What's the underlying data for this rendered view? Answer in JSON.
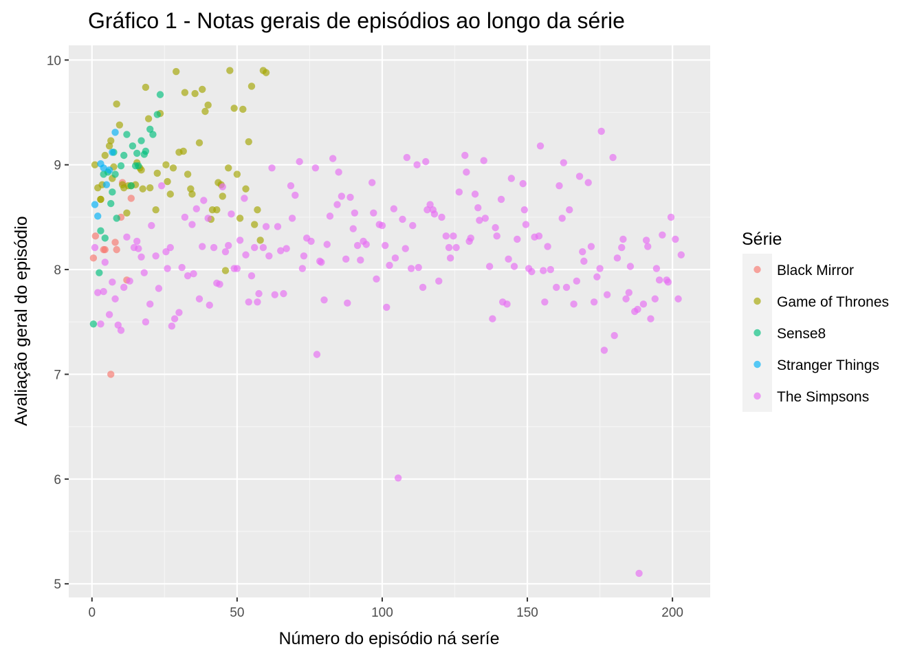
{
  "chart_data": {
    "type": "scatter",
    "title": "Gráfico 1 - Notas gerais de episódios ao longo da série",
    "xlabel": "Número do episódio ná seríe",
    "ylabel": "Avaliação geral do episódio",
    "xlim": [
      -8,
      213
    ],
    "ylim": [
      4.87,
      10.14
    ],
    "x_ticks": [
      0,
      50,
      100,
      150,
      200
    ],
    "y_ticks": [
      5,
      6,
      7,
      8,
      9,
      10
    ],
    "grid": true,
    "legend": {
      "title": "Série",
      "position": "right"
    },
    "series": [
      {
        "name": "Black Mirror",
        "color": "#F8766D",
        "points": [
          [
            0.5,
            8.11
          ],
          [
            1.2,
            8.32
          ],
          [
            4,
            8.19
          ],
          [
            4.5,
            8.19
          ],
          [
            6.5,
            7.0
          ],
          [
            8,
            8.26
          ],
          [
            8.5,
            8.19
          ],
          [
            10.5,
            8.83
          ],
          [
            12,
            7.9
          ],
          [
            13.5,
            8.68
          ],
          [
            10,
            8.5
          ]
        ]
      },
      {
        "name": "Game of Thrones",
        "color": "#A3A500",
        "points": [
          [
            1,
            9.0
          ],
          [
            2,
            8.78
          ],
          [
            3,
            8.67
          ],
          [
            3.5,
            8.81
          ],
          [
            4.5,
            9.09
          ],
          [
            6,
            9.18
          ],
          [
            6.5,
            9.23
          ],
          [
            7,
            8.87
          ],
          [
            7.5,
            8.98
          ],
          [
            8.5,
            9.58
          ],
          [
            9.5,
            9.38
          ],
          [
            10.5,
            8.81
          ],
          [
            11,
            8.78
          ],
          [
            12,
            8.54
          ],
          [
            12.5,
            8.8
          ],
          [
            13.5,
            8.8
          ],
          [
            15,
            8.81
          ],
          [
            15.5,
            9.02
          ],
          [
            16.5,
            8.97
          ],
          [
            17,
            8.95
          ],
          [
            17.5,
            8.77
          ],
          [
            18.5,
            9.74
          ],
          [
            19.5,
            9.44
          ],
          [
            20,
            8.78
          ],
          [
            22,
            8.57
          ],
          [
            22.5,
            8.92
          ],
          [
            23.5,
            9.49
          ],
          [
            25.5,
            9.0
          ],
          [
            26,
            8.84
          ],
          [
            27,
            8.72
          ],
          [
            28,
            8.97
          ],
          [
            29,
            9.89
          ],
          [
            30,
            9.12
          ],
          [
            31.5,
            9.13
          ],
          [
            32,
            9.69
          ],
          [
            33,
            8.91
          ],
          [
            34,
            8.77
          ],
          [
            34.5,
            8.72
          ],
          [
            35.5,
            9.68
          ],
          [
            37,
            9.21
          ],
          [
            38,
            9.72
          ],
          [
            39,
            9.51
          ],
          [
            40,
            9.57
          ],
          [
            41,
            8.48
          ],
          [
            41.5,
            8.57
          ],
          [
            43,
            8.57
          ],
          [
            43.5,
            8.83
          ],
          [
            44.5,
            8.81
          ],
          [
            45,
            8.7
          ],
          [
            46,
            7.99
          ],
          [
            47,
            8.97
          ],
          [
            47.5,
            9.9
          ],
          [
            49,
            9.54
          ],
          [
            50,
            8.91
          ],
          [
            51,
            8.49
          ],
          [
            52,
            9.53
          ],
          [
            53,
            8.77
          ],
          [
            54,
            9.22
          ],
          [
            55,
            9.75
          ],
          [
            56,
            8.43
          ],
          [
            57,
            8.57
          ],
          [
            58,
            8.28
          ],
          [
            59,
            9.9
          ],
          [
            60,
            9.88
          ],
          [
            3,
            8.67
          ]
        ]
      },
      {
        "name": "Sense8",
        "color": "#00BF7D",
        "points": [
          [
            0.5,
            7.48
          ],
          [
            2.5,
            7.97
          ],
          [
            3,
            8.37
          ],
          [
            4,
            8.91
          ],
          [
            4.5,
            8.3
          ],
          [
            5.5,
            8.93
          ],
          [
            6.5,
            8.63
          ],
          [
            7,
            8.74
          ],
          [
            7.5,
            9.12
          ],
          [
            8,
            8.91
          ],
          [
            8.5,
            8.49
          ],
          [
            10,
            8.99
          ],
          [
            11,
            9.09
          ],
          [
            12,
            9.29
          ],
          [
            14,
            9.18
          ],
          [
            15,
            8.99
          ],
          [
            15.5,
            9.11
          ],
          [
            16,
            8.99
          ],
          [
            17,
            9.23
          ],
          [
            18,
            9.1
          ],
          [
            18.5,
            9.13
          ],
          [
            20,
            9.34
          ],
          [
            21,
            9.29
          ],
          [
            22.5,
            9.48
          ],
          [
            23.5,
            9.67
          ],
          [
            13.5,
            8.8
          ]
        ]
      },
      {
        "name": "Stranger Things",
        "color": "#00B0F6",
        "points": [
          [
            1,
            8.62
          ],
          [
            2,
            8.51
          ],
          [
            3,
            9.01
          ],
          [
            4,
            8.97
          ],
          [
            5,
            8.81
          ],
          [
            6,
            8.95
          ],
          [
            7,
            9.12
          ],
          [
            8,
            9.31
          ]
        ]
      },
      {
        "name": "The Simpsons",
        "color": "#E76BF3",
        "points": [
          [
            1,
            8.21
          ],
          [
            2,
            7.78
          ],
          [
            3,
            7.48
          ],
          [
            4,
            7.79
          ],
          [
            4.5,
            8.07
          ],
          [
            6,
            7.57
          ],
          [
            7,
            7.88
          ],
          [
            8,
            7.72
          ],
          [
            9,
            7.47
          ],
          [
            10,
            7.42
          ],
          [
            11,
            7.83
          ],
          [
            12,
            8.31
          ],
          [
            13,
            7.89
          ],
          [
            14.5,
            8.21
          ],
          [
            15.5,
            8.27
          ],
          [
            16,
            8.2
          ],
          [
            17,
            8.12
          ],
          [
            18.5,
            7.5
          ],
          [
            18,
            7.97
          ],
          [
            20,
            7.67
          ],
          [
            20.5,
            8.42
          ],
          [
            22,
            8.13
          ],
          [
            23,
            7.82
          ],
          [
            24,
            8.8
          ],
          [
            25.5,
            8.17
          ],
          [
            26,
            8.01
          ],
          [
            27.5,
            7.46
          ],
          [
            27,
            8.21
          ],
          [
            28.5,
            7.53
          ],
          [
            30,
            7.59
          ],
          [
            31,
            8.02
          ],
          [
            32,
            8.5
          ],
          [
            33,
            7.94
          ],
          [
            34.5,
            8.43
          ],
          [
            35,
            7.96
          ],
          [
            36,
            8.58
          ],
          [
            37,
            7.72
          ],
          [
            38,
            8.22
          ],
          [
            38.5,
            8.66
          ],
          [
            40,
            8.49
          ],
          [
            40.5,
            7.66
          ],
          [
            42,
            8.21
          ],
          [
            43,
            7.87
          ],
          [
            44,
            7.86
          ],
          [
            45,
            8.79
          ],
          [
            46,
            8.17
          ],
          [
            47,
            8.23
          ],
          [
            48,
            8.53
          ],
          [
            49,
            8.01
          ],
          [
            50,
            8.01
          ],
          [
            51,
            8.28
          ],
          [
            52.5,
            8.68
          ],
          [
            53,
            8.14
          ],
          [
            54,
            7.69
          ],
          [
            55,
            7.94
          ],
          [
            56,
            8.21
          ],
          [
            57,
            7.69
          ],
          [
            57.5,
            7.77
          ],
          [
            59,
            8.21
          ],
          [
            60,
            8.41
          ],
          [
            61,
            8.13
          ],
          [
            62,
            8.97
          ],
          [
            63,
            7.76
          ],
          [
            64,
            8.41
          ],
          [
            65,
            8.18
          ],
          [
            66,
            7.77
          ],
          [
            67,
            8.2
          ],
          [
            68.5,
            8.8
          ],
          [
            69,
            8.49
          ],
          [
            70,
            8.71
          ],
          [
            71.5,
            9.03
          ],
          [
            72.5,
            8.01
          ],
          [
            73,
            8.13
          ],
          [
            74,
            8.3
          ],
          [
            75.5,
            8.27
          ],
          [
            77,
            8.97
          ],
          [
            77.5,
            7.19
          ],
          [
            78.5,
            8.08
          ],
          [
            79,
            8.07
          ],
          [
            80,
            7.71
          ],
          [
            81,
            8.24
          ],
          [
            82,
            8.51
          ],
          [
            83,
            9.06
          ],
          [
            84.5,
            8.62
          ],
          [
            85,
            8.93
          ],
          [
            86,
            8.7
          ],
          [
            87.5,
            8.1
          ],
          [
            88,
            7.68
          ],
          [
            89,
            8.69
          ],
          [
            90,
            8.39
          ],
          [
            90.5,
            8.54
          ],
          [
            91.5,
            8.23
          ],
          [
            92.5,
            8.09
          ],
          [
            93.5,
            8.27
          ],
          [
            94.5,
            8.24
          ],
          [
            96.5,
            8.83
          ],
          [
            97,
            8.54
          ],
          [
            98,
            7.91
          ],
          [
            99,
            8.43
          ],
          [
            100,
            8.42
          ],
          [
            101,
            8.23
          ],
          [
            101.5,
            7.64
          ],
          [
            102.5,
            8.04
          ],
          [
            104,
            8.58
          ],
          [
            104.5,
            8.11
          ],
          [
            105.5,
            6.01
          ],
          [
            107,
            8.48
          ],
          [
            108,
            8.2
          ],
          [
            108.5,
            9.07
          ],
          [
            110,
            8.01
          ],
          [
            110.5,
            8.42
          ],
          [
            112,
            9.0
          ],
          [
            112.5,
            8.02
          ],
          [
            114,
            7.83
          ],
          [
            115,
            9.03
          ],
          [
            115.5,
            8.57
          ],
          [
            116.5,
            8.62
          ],
          [
            117.5,
            8.57
          ],
          [
            118,
            8.53
          ],
          [
            119.5,
            7.89
          ],
          [
            120.5,
            8.5
          ],
          [
            122,
            8.32
          ],
          [
            123,
            8.21
          ],
          [
            123.5,
            8.11
          ],
          [
            124.5,
            8.32
          ],
          [
            125.5,
            8.21
          ],
          [
            126.5,
            8.74
          ],
          [
            128.5,
            9.09
          ],
          [
            129,
            8.93
          ],
          [
            130,
            8.27
          ],
          [
            130.5,
            8.3
          ],
          [
            132,
            8.72
          ],
          [
            133,
            8.59
          ],
          [
            133.5,
            8.47
          ],
          [
            135,
            9.04
          ],
          [
            135.5,
            8.49
          ],
          [
            137,
            8.03
          ],
          [
            138,
            7.53
          ],
          [
            139,
            8.4
          ],
          [
            139.5,
            8.32
          ],
          [
            141,
            8.67
          ],
          [
            141.5,
            7.69
          ],
          [
            143,
            7.67
          ],
          [
            143.5,
            8.1
          ],
          [
            144.5,
            8.87
          ],
          [
            145.5,
            8.03
          ],
          [
            146.5,
            8.29
          ],
          [
            148.5,
            8.82
          ],
          [
            149,
            8.57
          ],
          [
            149.5,
            8.43
          ],
          [
            150.5,
            8.01
          ],
          [
            151.5,
            7.98
          ],
          [
            152.5,
            8.31
          ],
          [
            154,
            8.32
          ],
          [
            154.5,
            9.18
          ],
          [
            155.5,
            7.99
          ],
          [
            156,
            7.69
          ],
          [
            157,
            8.22
          ],
          [
            158,
            8.0
          ],
          [
            160,
            7.83
          ],
          [
            161,
            8.8
          ],
          [
            162,
            8.49
          ],
          [
            162.5,
            9.02
          ],
          [
            163.5,
            7.83
          ],
          [
            164.5,
            8.57
          ],
          [
            166,
            7.67
          ],
          [
            167,
            7.89
          ],
          [
            168,
            8.89
          ],
          [
            169,
            8.17
          ],
          [
            169.5,
            8.08
          ],
          [
            171,
            8.83
          ],
          [
            172,
            8.22
          ],
          [
            173,
            7.69
          ],
          [
            174,
            7.93
          ],
          [
            175,
            8.01
          ],
          [
            175.5,
            9.32
          ],
          [
            176.5,
            7.23
          ],
          [
            177.5,
            7.76
          ],
          [
            179.5,
            9.07
          ],
          [
            180,
            7.37
          ],
          [
            181,
            8.11
          ],
          [
            182.5,
            8.21
          ],
          [
            183,
            8.29
          ],
          [
            184,
            7.72
          ],
          [
            185,
            7.78
          ],
          [
            185.5,
            8.03
          ],
          [
            187,
            7.6
          ],
          [
            188,
            7.62
          ],
          [
            188.5,
            5.1
          ],
          [
            190,
            7.67
          ],
          [
            191,
            8.28
          ],
          [
            191.5,
            8.22
          ],
          [
            192.5,
            7.53
          ],
          [
            194,
            7.72
          ],
          [
            194.5,
            8.01
          ],
          [
            195.5,
            7.9
          ],
          [
            196.5,
            8.33
          ],
          [
            198,
            7.9
          ],
          [
            198.5,
            7.88
          ],
          [
            199.5,
            8.5
          ],
          [
            201,
            8.29
          ],
          [
            202,
            7.72
          ],
          [
            203,
            8.14
          ]
        ]
      }
    ]
  }
}
